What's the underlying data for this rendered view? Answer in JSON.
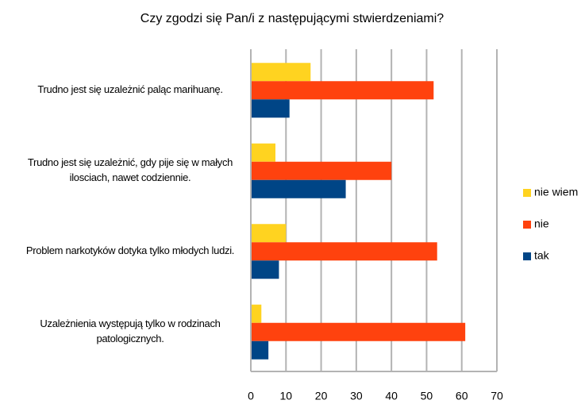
{
  "chart_data": {
    "type": "hbar",
    "title": "Czy zgodzi się Pan/i z następującymi stwierdzeniami?",
    "categories": [
      "Trudno jest się uzależnić paląc marihuanę.",
      "Trudno jest się uzależnić, gdy pije się w małych ilosciach, nawet codziennie.",
      "Problem narkotyków dotyka tylko młodych ludzi.",
      "Uzależnienia występują tylko w rodzinach patologicznych."
    ],
    "series": [
      {
        "name": "nie wiem",
        "color": "#ffd320",
        "values": [
          17,
          7,
          10,
          3
        ]
      },
      {
        "name": "nie",
        "color": "#ff420e",
        "values": [
          52,
          40,
          53,
          61
        ]
      },
      {
        "name": "tak",
        "color": "#004586",
        "values": [
          11,
          27,
          8,
          5
        ]
      }
    ],
    "xlim": [
      0,
      70
    ],
    "xticks": [
      0,
      10,
      20,
      30,
      40,
      50,
      60,
      70
    ],
    "grid": true,
    "legend": "right"
  }
}
